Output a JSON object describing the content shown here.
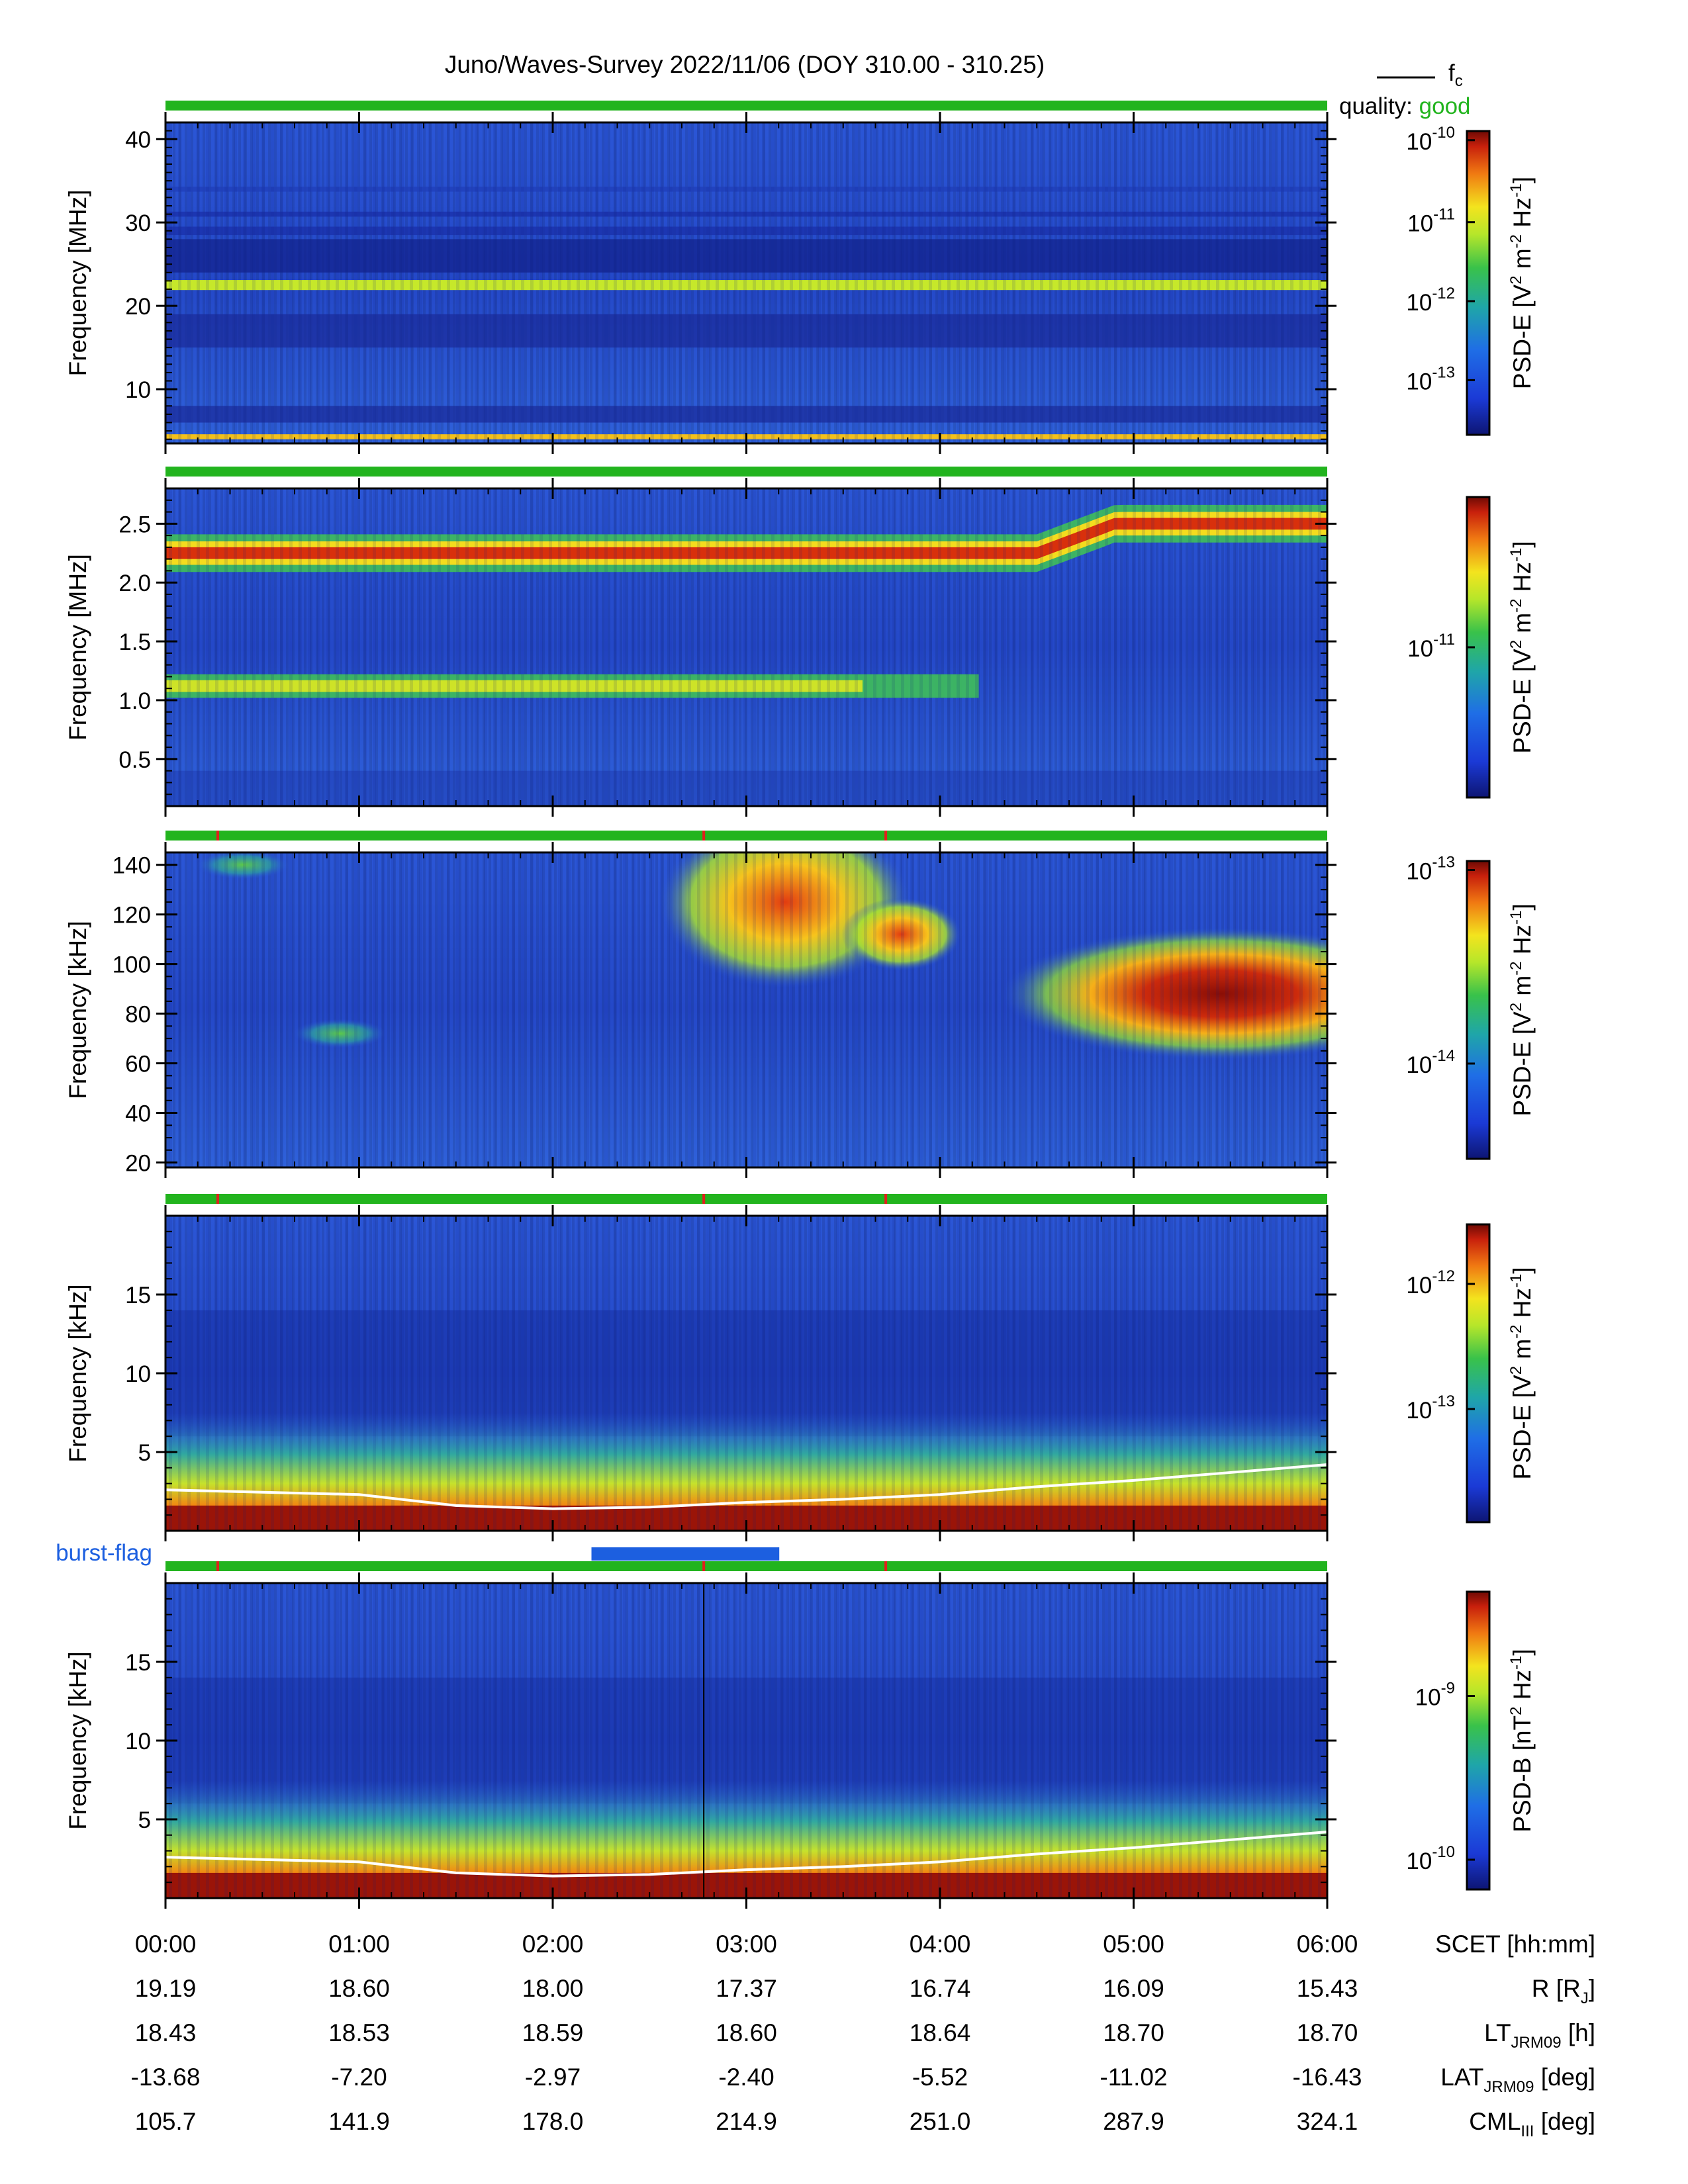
{
  "chart_data": {
    "type": "heatmap",
    "title": "Juno/Waves-Survey  2022/11/06 (DOY 310.00 - 310.25)",
    "legend": {
      "line_label": "f",
      "line_sub": "c",
      "quality_label": "quality:",
      "quality_value": "good"
    },
    "burst_flag": {
      "label": "burst-flag",
      "interval": [
        2.2,
        3.17
      ]
    },
    "panels": [
      {
        "ylabel": "Frequency [MHz]",
        "ylim": [
          3.5,
          42
        ],
        "yticks": [
          {
            "v": 10,
            "t": "10"
          },
          {
            "v": 20,
            "t": "20"
          },
          {
            "v": 30,
            "t": "30"
          },
          {
            "v": 40,
            "t": "40"
          }
        ],
        "yminor": 1,
        "cbar": {
          "label": "PSD-E [V",
          "sup1": "2",
          "mid": " m",
          "sup2": "-2",
          "tail": " Hz",
          "sup3": "-1",
          "end": "]",
          "ticks": [
            {
              "t": "10",
              "e": "-10",
              "pos": 0.03
            },
            {
              "t": "10",
              "e": "-11",
              "pos": 0.3
            },
            {
              "t": "10",
              "e": "-12",
              "pos": 0.56
            },
            {
              "t": "10",
              "e": "-13",
              "pos": 0.82
            }
          ]
        },
        "quality_markers": [],
        "bands": [
          {
            "f": 22.5,
            "w": 1.2,
            "level": 0.66
          },
          {
            "f": 4.3,
            "w": 0.4,
            "level": 0.75
          }
        ],
        "fc": [],
        "vline": null
      },
      {
        "ylabel": "Frequency [MHz]",
        "ylim": [
          0.1,
          2.8
        ],
        "yticks": [
          {
            "v": 0.5,
            "t": "0.5"
          },
          {
            "v": 1.0,
            "t": "1.0"
          },
          {
            "v": 1.5,
            "t": "1.5"
          },
          {
            "v": 2.0,
            "t": "2.0"
          },
          {
            "v": 2.5,
            "t": "2.5"
          }
        ],
        "yminor": 0.1,
        "cbar": {
          "label": "PSD-E [V",
          "sup1": "2",
          "mid": " m",
          "sup2": "-2",
          "tail": " Hz",
          "sup3": "-1",
          "end": "]",
          "ticks": [
            {
              "t": "10",
              "e": "-11",
              "pos": 0.5
            }
          ]
        },
        "quality_markers": [],
        "bands": [
          {
            "f": 2.25,
            "w": 0.09,
            "level": 0.92
          },
          {
            "f": 1.12,
            "w": 0.07,
            "level": 0.62
          }
        ],
        "fc": [],
        "vline": null
      },
      {
        "ylabel": "Frequency [kHz]",
        "ylim": [
          18,
          145
        ],
        "yticks": [
          {
            "v": 20,
            "t": "20"
          },
          {
            "v": 40,
            "t": "40"
          },
          {
            "v": 60,
            "t": "60"
          },
          {
            "v": 80,
            "t": "80"
          },
          {
            "v": 100,
            "t": "100"
          },
          {
            "v": 120,
            "t": "120"
          },
          {
            "v": 140,
            "t": "140"
          }
        ],
        "yminor": 5,
        "cbar": {
          "label": "PSD-E [V",
          "sup1": "2",
          "mid": " m",
          "sup2": "-2",
          "tail": " Hz",
          "sup3": "-1",
          "end": "]",
          "ticks": [
            {
              "t": "10",
              "e": "-13",
              "pos": 0.03
            },
            {
              "t": "10",
              "e": "-14",
              "pos": 0.68
            }
          ]
        },
        "quality_markers": [
          0.27,
          2.78,
          3.72
        ],
        "bands": [],
        "fc": [],
        "vline": null
      },
      {
        "ylabel": "Frequency [kHz]",
        "ylim": [
          0,
          20
        ],
        "yticks": [
          {
            "v": 5,
            "t": "5"
          },
          {
            "v": 10,
            "t": "10"
          },
          {
            "v": 15,
            "t": "15"
          }
        ],
        "yminor": 1,
        "cbar": {
          "label": "PSD-E [V",
          "sup1": "2",
          "mid": " m",
          "sup2": "-2",
          "tail": " Hz",
          "sup3": "-1",
          "end": "]",
          "ticks": [
            {
              "t": "10",
              "e": "-12",
              "pos": 0.2
            },
            {
              "t": "10",
              "e": "-13",
              "pos": 0.62
            }
          ]
        },
        "quality_markers": [
          0.27,
          2.78,
          3.72
        ],
        "bands": [],
        "fc": [
          [
            0,
            2.6
          ],
          [
            1,
            2.3
          ],
          [
            1.5,
            1.6
          ],
          [
            2.0,
            1.4
          ],
          [
            2.5,
            1.5
          ],
          [
            3.0,
            1.8
          ],
          [
            3.5,
            2.0
          ],
          [
            4.0,
            2.3
          ],
          [
            4.5,
            2.8
          ],
          [
            5.0,
            3.2
          ],
          [
            5.5,
            3.7
          ],
          [
            6.0,
            4.2
          ]
        ],
        "vline": null
      },
      {
        "ylabel": "Frequency [kHz]",
        "ylim": [
          0,
          20
        ],
        "yticks": [
          {
            "v": 5,
            "t": "5"
          },
          {
            "v": 10,
            "t": "10"
          },
          {
            "v": 15,
            "t": "15"
          }
        ],
        "yminor": 1,
        "cbar": {
          "label": "PSD-B [nT",
          "sup1": "2",
          "mid": " Hz",
          "sup2": "-1",
          "tail": "",
          "sup3": "",
          "end": "]",
          "ticks": [
            {
              "t": "10",
              "e": "-9",
              "pos": 0.35
            },
            {
              "t": "10",
              "e": "-10",
              "pos": 0.9
            }
          ]
        },
        "quality_markers": [
          0.27,
          2.78,
          3.72
        ],
        "bands": [],
        "fc": [
          [
            0,
            2.6
          ],
          [
            1,
            2.3
          ],
          [
            1.5,
            1.6
          ],
          [
            2.0,
            1.4
          ],
          [
            2.5,
            1.5
          ],
          [
            3.0,
            1.8
          ],
          [
            3.5,
            2.0
          ],
          [
            4.0,
            2.3
          ],
          [
            4.5,
            2.8
          ],
          [
            5.0,
            3.2
          ],
          [
            5.5,
            3.7
          ],
          [
            6.0,
            4.2
          ]
        ],
        "vline": 2.78
      }
    ],
    "x": {
      "ticks": [
        "00:00",
        "01:00",
        "02:00",
        "03:00",
        "04:00",
        "05:00",
        "06:00"
      ]
    },
    "ephemeris": [
      {
        "label": "SCET [hh:mm]",
        "values": []
      },
      {
        "label": "R [R",
        "sub": "J",
        "end": "]",
        "values": [
          "19.19",
          "18.60",
          "18.00",
          "17.37",
          "16.74",
          "16.09",
          "15.43"
        ]
      },
      {
        "label": "LT",
        "sub": "JRM09",
        "end": " [h]",
        "values": [
          "18.43",
          "18.53",
          "18.59",
          "18.60",
          "18.64",
          "18.70",
          "18.70"
        ]
      },
      {
        "label": "LAT",
        "sub": "JRM09",
        "end": " [deg]",
        "values": [
          "-13.68",
          "-7.20",
          "-2.97",
          "-2.40",
          "-5.52",
          "-11.02",
          "-16.43"
        ]
      },
      {
        "label": "CML",
        "sub": "III",
        "end": " [deg]",
        "values": [
          "105.7",
          "141.9",
          "178.0",
          "214.9",
          "251.0",
          "287.9",
          "324.1"
        ]
      }
    ],
    "colors": {
      "quality_good": "#22b41e",
      "quality_marker": "#e0201c",
      "burst": "#1c5fe0",
      "fc_line": "#ffffff"
    }
  }
}
